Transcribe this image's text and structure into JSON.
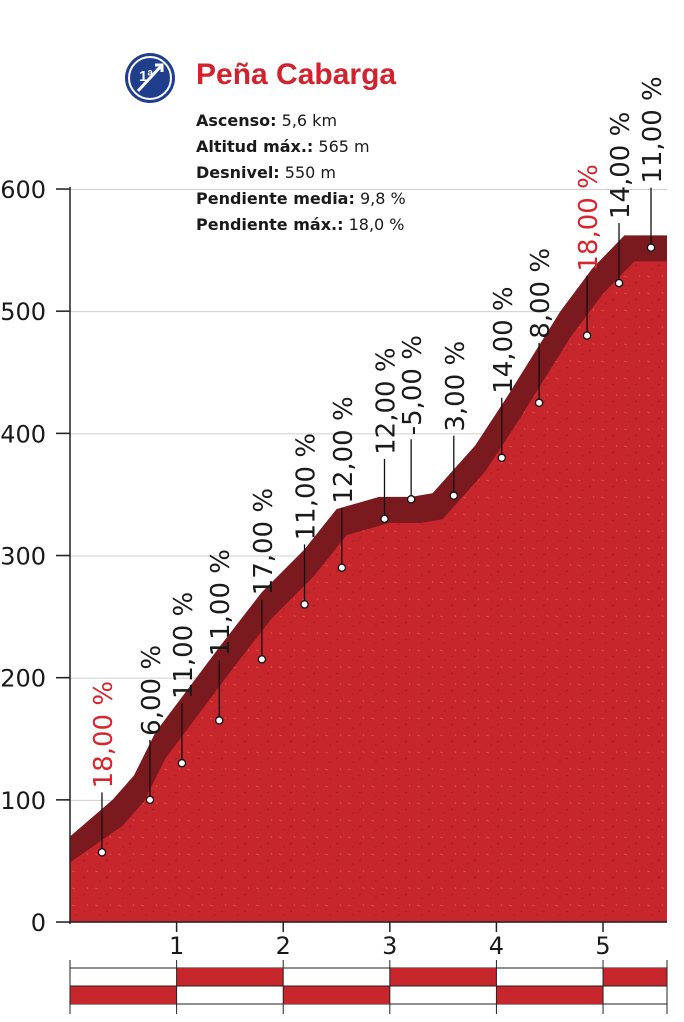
{
  "header": {
    "category_badge": "1ª",
    "title": "Peña Cabarga",
    "stats": [
      {
        "label": "Ascenso:",
        "value": "5,6 km"
      },
      {
        "label": "Altitud máx.:",
        "value": "565 m"
      },
      {
        "label": "Desnivel:",
        "value": "550 m"
      },
      {
        "label": "Pendiente media:",
        "value": "9,8 %"
      },
      {
        "label": "Pendiente máx.:",
        "value": "18,0 %"
      }
    ]
  },
  "colors": {
    "profile_fill": "#c6262c",
    "profile_top": "#7a1a1f",
    "highlight_text": "#d8242c",
    "text": "#1a1a1a",
    "badge": "#1f3f8c"
  },
  "chart_data": {
    "type": "area",
    "x_unit": "km",
    "y_unit": "m",
    "xlim": [
      0,
      5.6
    ],
    "ylim": [
      0,
      600
    ],
    "yticks": [
      0,
      100,
      200,
      300,
      400,
      500,
      600
    ],
    "xticks": [
      1,
      2,
      3,
      4,
      5
    ],
    "profile": [
      {
        "x": 0.0,
        "y": 70
      },
      {
        "x": 0.4,
        "y": 100
      },
      {
        "x": 0.6,
        "y": 120
      },
      {
        "x": 0.8,
        "y": 155
      },
      {
        "x": 1.1,
        "y": 190
      },
      {
        "x": 1.4,
        "y": 225
      },
      {
        "x": 1.8,
        "y": 270
      },
      {
        "x": 2.2,
        "y": 305
      },
      {
        "x": 2.5,
        "y": 338
      },
      {
        "x": 2.9,
        "y": 348
      },
      {
        "x": 3.2,
        "y": 348
      },
      {
        "x": 3.4,
        "y": 351
      },
      {
        "x": 3.8,
        "y": 390
      },
      {
        "x": 4.1,
        "y": 430
      },
      {
        "x": 4.6,
        "y": 500
      },
      {
        "x": 4.9,
        "y": 535
      },
      {
        "x": 5.2,
        "y": 562
      },
      {
        "x": 5.6,
        "y": 562
      }
    ],
    "segments": [
      {
        "label": "18,00 %",
        "x": 0.3,
        "y": 57,
        "highlight": true
      },
      {
        "label": "6,00 %",
        "x": 0.75,
        "y": 100,
        "highlight": false
      },
      {
        "label": "11,00 %",
        "x": 1.05,
        "y": 130,
        "highlight": false
      },
      {
        "label": "11,00 %",
        "x": 1.4,
        "y": 165,
        "highlight": false
      },
      {
        "label": "17,00 %",
        "x": 1.8,
        "y": 215,
        "highlight": false
      },
      {
        "label": "11,00 %",
        "x": 2.2,
        "y": 260,
        "highlight": false
      },
      {
        "label": "12,00 %",
        "x": 2.55,
        "y": 290,
        "highlight": false
      },
      {
        "label": "12,00 %",
        "x": 2.95,
        "y": 330,
        "highlight": false
      },
      {
        "label": "-5,00 %",
        "x": 3.2,
        "y": 346,
        "highlight": false
      },
      {
        "label": "3,00 %",
        "x": 3.6,
        "y": 349,
        "highlight": false
      },
      {
        "label": "14,00 %",
        "x": 4.05,
        "y": 380,
        "highlight": false
      },
      {
        "label": "8,00 %",
        "x": 4.4,
        "y": 425,
        "highlight": false
      },
      {
        "label": "18,00 %",
        "x": 4.85,
        "y": 480,
        "highlight": true
      },
      {
        "label": "14,00 %",
        "x": 5.15,
        "y": 523,
        "highlight": false
      },
      {
        "label": "11,00 %",
        "x": 5.45,
        "y": 552,
        "highlight": false
      }
    ]
  }
}
